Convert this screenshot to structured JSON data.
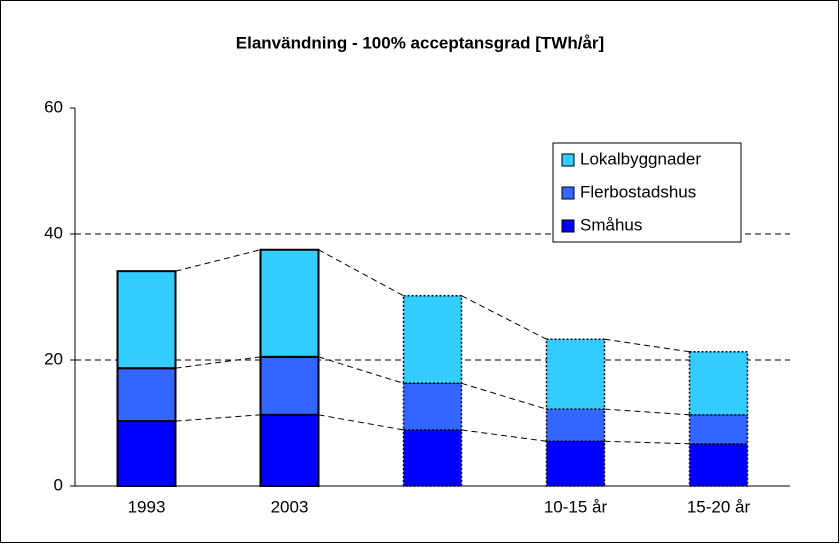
{
  "chart_data": {
    "type": "stacked-bar",
    "title": "Elanvändning - 100% acceptansgrad [TWh/år]",
    "categories": [
      "1993",
      "2003",
      null,
      "10-15 år",
      "15-20 år"
    ],
    "series": [
      {
        "name": "Småhus",
        "color": "#0000ff",
        "values": [
          10.3,
          11.3,
          8.9,
          7.1,
          6.7
        ]
      },
      {
        "name": "Flerbostadshus",
        "color": "#3366ff",
        "values": [
          8.4,
          9.2,
          7.4,
          5.1,
          4.6
        ]
      },
      {
        "name": "Lokalbyggnader",
        "color": "#33ccff",
        "values": [
          15.4,
          17.0,
          13.9,
          11.1,
          10.0
        ]
      }
    ],
    "ylim": [
      0,
      60
    ],
    "yticks": [
      0,
      20,
      40,
      60
    ],
    "grid": true,
    "bar_borders": [
      "solid",
      "solid",
      "dotted",
      "dotted",
      "dotted"
    ],
    "legend": "upper right"
  }
}
